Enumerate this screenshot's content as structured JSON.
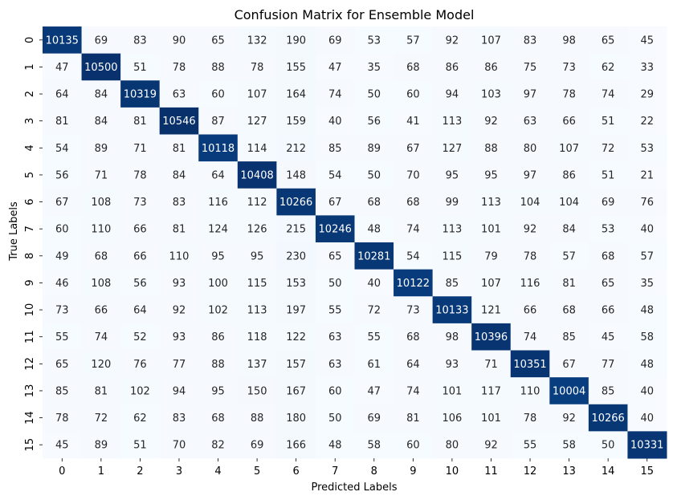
{
  "chart_data": {
    "type": "heatmap",
    "title": "Confusion Matrix for Ensemble Model",
    "xlabel": "Predicted Labels",
    "ylabel": "True Labels",
    "x_categories": [
      "0",
      "1",
      "2",
      "3",
      "4",
      "5",
      "6",
      "7",
      "8",
      "9",
      "10",
      "11",
      "12",
      "13",
      "14",
      "15"
    ],
    "y_categories": [
      "0",
      "1",
      "2",
      "3",
      "4",
      "5",
      "6",
      "7",
      "8",
      "9",
      "10",
      "11",
      "12",
      "13",
      "14",
      "15"
    ],
    "colormap": "Blues",
    "color_range": [
      21,
      10546
    ],
    "colorbar": false,
    "matrix": [
      [
        10135,
        69,
        83,
        90,
        65,
        132,
        190,
        69,
        53,
        57,
        92,
        107,
        83,
        98,
        65,
        45
      ],
      [
        47,
        10500,
        51,
        78,
        88,
        78,
        155,
        47,
        35,
        68,
        86,
        86,
        75,
        73,
        62,
        33
      ],
      [
        64,
        84,
        10319,
        63,
        60,
        107,
        164,
        74,
        50,
        60,
        94,
        103,
        97,
        78,
        74,
        29
      ],
      [
        81,
        84,
        81,
        10546,
        87,
        127,
        159,
        40,
        56,
        41,
        113,
        92,
        63,
        66,
        51,
        22
      ],
      [
        54,
        89,
        71,
        81,
        10118,
        114,
        212,
        85,
        89,
        67,
        127,
        88,
        80,
        107,
        72,
        53
      ],
      [
        56,
        71,
        78,
        84,
        64,
        10408,
        148,
        54,
        50,
        70,
        95,
        95,
        97,
        86,
        51,
        21
      ],
      [
        67,
        108,
        73,
        83,
        116,
        112,
        10266,
        67,
        68,
        68,
        99,
        113,
        104,
        104,
        69,
        76
      ],
      [
        60,
        110,
        66,
        81,
        124,
        126,
        215,
        10246,
        48,
        74,
        113,
        101,
        92,
        84,
        53,
        40
      ],
      [
        49,
        68,
        66,
        110,
        95,
        95,
        230,
        65,
        10281,
        54,
        115,
        79,
        78,
        57,
        68,
        57
      ],
      [
        46,
        108,
        56,
        93,
        100,
        115,
        153,
        50,
        40,
        10122,
        85,
        107,
        116,
        81,
        65,
        35
      ],
      [
        73,
        66,
        64,
        92,
        102,
        113,
        197,
        55,
        72,
        73,
        10133,
        121,
        66,
        68,
        66,
        48
      ],
      [
        55,
        74,
        52,
        93,
        86,
        118,
        122,
        63,
        55,
        68,
        98,
        10396,
        74,
        85,
        45,
        58
      ],
      [
        65,
        120,
        76,
        77,
        88,
        137,
        157,
        63,
        61,
        64,
        93,
        71,
        10351,
        67,
        77,
        48
      ],
      [
        85,
        81,
        102,
        94,
        95,
        150,
        167,
        60,
        47,
        74,
        101,
        117,
        110,
        10004,
        85,
        40
      ],
      [
        78,
        72,
        62,
        83,
        68,
        88,
        180,
        50,
        69,
        81,
        106,
        101,
        78,
        92,
        10266,
        40
      ],
      [
        45,
        89,
        51,
        70,
        82,
        69,
        166,
        48,
        58,
        60,
        80,
        92,
        55,
        58,
        50,
        10331
      ]
    ]
  }
}
